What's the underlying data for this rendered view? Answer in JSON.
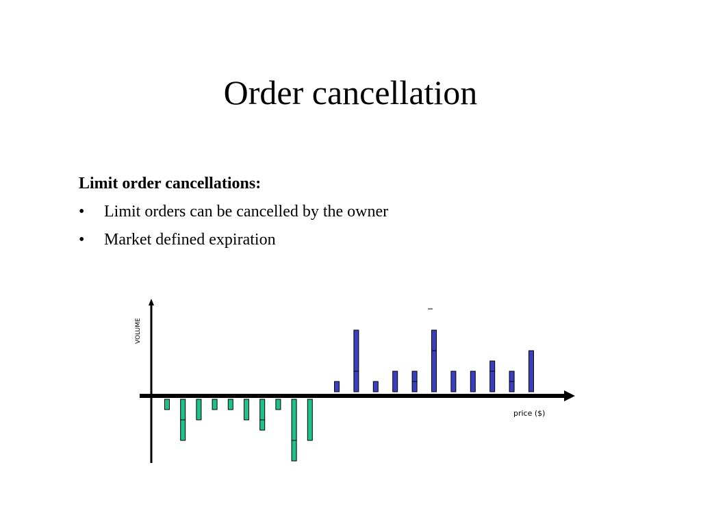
{
  "slide": {
    "title": "Order cancellation",
    "heading": "Limit order cancellations:",
    "bullets": [
      "Limit orders can be cancelled by the owner",
      "Market defined expiration"
    ]
  },
  "chart_data": {
    "type": "bar",
    "ylabel": "VOLUME",
    "xlabel": "price ($)",
    "colors": {
      "buy": "#20c08a",
      "sell": "#3a3fc0",
      "outline": "#000000",
      "axis": "#000000"
    },
    "buy_orders": [
      {
        "price": 1,
        "stack": [
          1
        ]
      },
      {
        "price": 2,
        "stack": [
          2,
          2
        ]
      },
      {
        "price": 3,
        "stack": [
          2
        ]
      },
      {
        "price": 4,
        "stack": [
          1
        ]
      },
      {
        "price": 5,
        "stack": [
          1
        ]
      },
      {
        "price": 6,
        "stack": [
          2
        ]
      },
      {
        "price": 7,
        "stack": [
          2,
          1
        ]
      },
      {
        "price": 8,
        "stack": [
          1
        ]
      },
      {
        "price": 9,
        "stack": [
          4,
          2
        ]
      },
      {
        "price": 10,
        "stack": [
          4
        ]
      }
    ],
    "sell_orders": [
      {
        "price": 11,
        "stack": [
          1
        ]
      },
      {
        "price": 12,
        "stack": [
          2,
          4
        ]
      },
      {
        "price": 13,
        "stack": [
          1
        ]
      },
      {
        "price": 14,
        "stack": [
          2
        ]
      },
      {
        "price": 15,
        "stack": [
          1,
          1
        ]
      },
      {
        "price": 16,
        "stack": [
          4,
          2
        ]
      },
      {
        "price": 17,
        "stack": [
          2
        ]
      },
      {
        "price": 18,
        "stack": [
          2
        ]
      },
      {
        "price": 19,
        "stack": [
          2,
          1
        ]
      },
      {
        "price": 20,
        "stack": [
          1,
          1
        ]
      },
      {
        "price": 21,
        "stack": [
          4
        ]
      }
    ]
  }
}
